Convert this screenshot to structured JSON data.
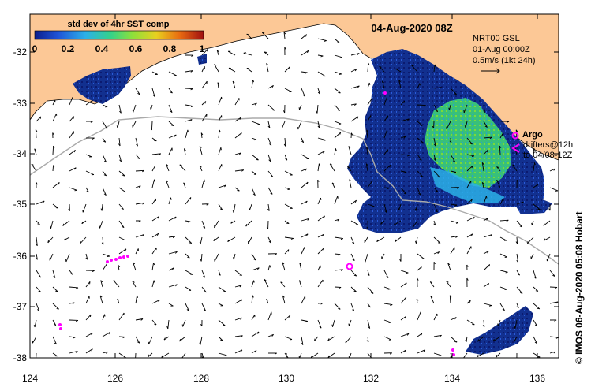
{
  "map": {
    "date_title": "04-Aug-2020 08Z",
    "colorbar": {
      "title": "std dev of 4hr SST comp",
      "ticks": [
        "0",
        "0.2",
        "0.4",
        "0.6",
        "0.8",
        "1"
      ],
      "colors": [
        "#0b1e8c",
        "#1f55d8",
        "#2cb0e8",
        "#34d28a",
        "#8ee03a",
        "#e8d020",
        "#e86a10",
        "#a01010"
      ]
    },
    "current_legend": {
      "line1": "NRT00 GSL",
      "line2": "01-Aug 00:00Z",
      "line3": "0.5m/s (1kt 24h)"
    },
    "argo_legend": {
      "label": "Argo",
      "drifters_line1": "drifters@12h",
      "drifters_line2": "to 04/08-12Z"
    },
    "credit": "© IMOS 06-Aug-2020 05:08 Hobart",
    "lat_labels": [
      "-32",
      "-33",
      "-34",
      "-35",
      "-36",
      "-37",
      "-38"
    ],
    "lon_labels": [
      "124",
      "126",
      "128",
      "130",
      "132",
      "134",
      "136"
    ],
    "colors": {
      "land": "#fcc896",
      "ocean": "#ffffff",
      "drifter": "#ff00ff",
      "vector": "#000000",
      "isobath": "#aaaaaa"
    }
  }
}
